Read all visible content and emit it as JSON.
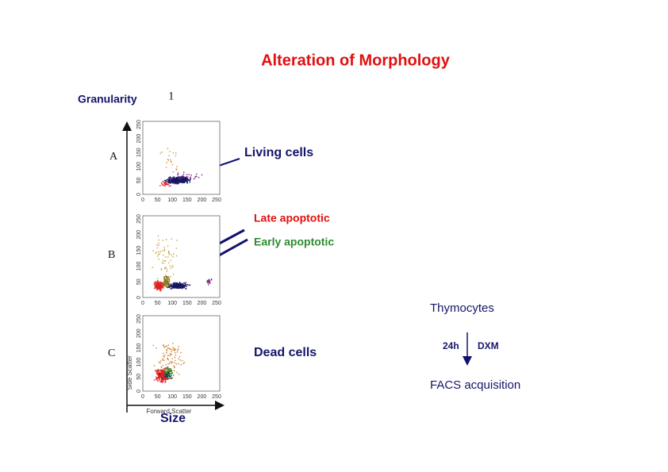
{
  "title": "Alteration of Morphology",
  "y_axis_label": "Granularity",
  "marker": "1",
  "x_axis_label": "Size",
  "plot_axes": {
    "x_title": "Forward Scatter",
    "y_title": "Side Scatter",
    "ticks": [
      "0",
      "50",
      "100",
      "150",
      "200",
      "250"
    ]
  },
  "panels": [
    {
      "label": "A",
      "annotations": [
        "Living cells"
      ]
    },
    {
      "label": "B",
      "annotations": [
        "Late apoptotic",
        "Early apoptotic"
      ]
    },
    {
      "label": "C",
      "annotations": [
        "Dead cells"
      ]
    }
  ],
  "protocol": {
    "start": "Thymocytes",
    "time": "24h",
    "treatment": "DXM",
    "end": "FACS acquisition"
  }
}
